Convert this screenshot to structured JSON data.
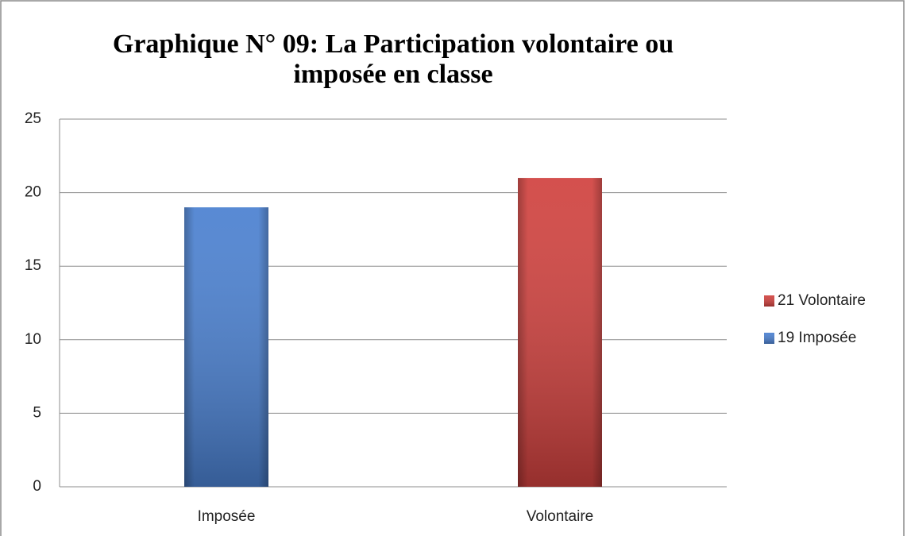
{
  "chart_data": {
    "type": "bar",
    "title": "Graphique N° 09: La Participation volontaire ou imposée en classe",
    "title_lines": [
      "Graphique N° 09: La Participation volontaire ou",
      "imposée en classe"
    ],
    "categories": [
      "Imposée",
      "Volontaire"
    ],
    "series": [
      {
        "name": "19 Imposée",
        "color": "#4a80d0",
        "values": [
          19,
          null
        ]
      },
      {
        "name": "21 Volontaire",
        "color": "#d0413e",
        "values": [
          null,
          21
        ]
      }
    ],
    "ylim": [
      0,
      25
    ],
    "yticks": [
      0,
      5,
      10,
      15,
      20,
      25
    ],
    "grid": true,
    "legend": "right"
  }
}
